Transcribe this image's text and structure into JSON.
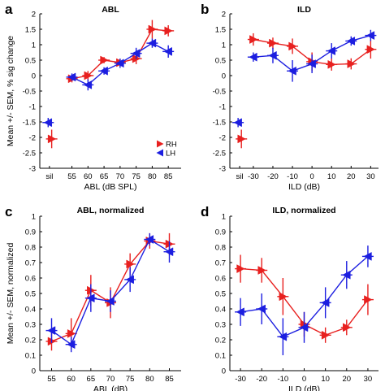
{
  "colors": {
    "RH": "#e8201f",
    "LH": "#1c1ee0",
    "axis": "#000000"
  },
  "chart_data": [
    {
      "panel": "a",
      "type": "line",
      "title": "ABL",
      "xlabel": "ABL (dB SPL)",
      "ylabel": "Mean +/- SEM, % sig change",
      "ylim": [
        -3,
        2
      ],
      "xlim": [
        45,
        89
      ],
      "yticks": [
        "-3",
        "-2.5",
        "-2",
        "-1.5",
        "-1",
        "-0.5",
        "0",
        "0.5",
        "1",
        "1.5",
        "2"
      ],
      "xticks": [
        {
          "x": 48,
          "label": "sil"
        },
        {
          "x": 55,
          "label": "55"
        },
        {
          "x": 60,
          "label": "60"
        },
        {
          "x": 65,
          "label": "65"
        },
        {
          "x": 70,
          "label": "70"
        },
        {
          "x": 75,
          "label": "75"
        },
        {
          "x": 80,
          "label": "80"
        },
        {
          "x": 85,
          "label": "85"
        }
      ],
      "legend": {
        "placement": "lower-right",
        "entries": [
          "RH",
          "LH"
        ]
      },
      "series": [
        {
          "name": "RH",
          "marker": "right-triangle",
          "x": [
            55,
            60,
            65,
            70,
            75,
            80,
            85
          ],
          "y": [
            -0.1,
            0.0,
            0.5,
            0.42,
            0.55,
            1.5,
            1.45
          ],
          "err": [
            0.12,
            0.15,
            0.1,
            0.12,
            0.18,
            0.3,
            0.18
          ],
          "sil": {
            "x": 48.7,
            "y": -2.05,
            "err": 0.3
          }
        },
        {
          "name": "LH",
          "marker": "left-triangle",
          "x": [
            55,
            60,
            65,
            70,
            75,
            80,
            85
          ],
          "y": [
            -0.05,
            -0.3,
            0.15,
            0.4,
            0.72,
            1.05,
            0.78
          ],
          "err": [
            0.12,
            0.18,
            0.12,
            0.15,
            0.18,
            0.15,
            0.2
          ],
          "sil": {
            "x": 47.6,
            "y": -1.52,
            "err": 0.15
          }
        }
      ]
    },
    {
      "panel": "b",
      "type": "line",
      "title": "ILD",
      "xlabel": "ILD (dB)",
      "ylabel": "",
      "ylim": [
        -3,
        2
      ],
      "xlim": [
        -42,
        34
      ],
      "yticks": [
        "-3",
        "-2.5",
        "-2",
        "-1.5",
        "-1",
        "-0.5",
        "0",
        "0.5",
        "1",
        "1.5",
        "2"
      ],
      "xticks": [
        {
          "x": -37,
          "label": "sil"
        },
        {
          "x": -30,
          "label": "-30"
        },
        {
          "x": -20,
          "label": "-20"
        },
        {
          "x": -10,
          "label": "-10"
        },
        {
          "x": 0,
          "label": "0"
        },
        {
          "x": 10,
          "label": "10"
        },
        {
          "x": 20,
          "label": "20"
        },
        {
          "x": 30,
          "label": "30"
        }
      ],
      "series": [
        {
          "name": "RH",
          "marker": "right-triangle",
          "x": [
            -30,
            -20,
            -10,
            0,
            10,
            20,
            30
          ],
          "y": [
            1.17,
            1.05,
            0.95,
            0.45,
            0.36,
            0.38,
            0.85
          ],
          "err": [
            0.2,
            0.18,
            0.25,
            0.3,
            0.2,
            0.18,
            0.3
          ],
          "sil": {
            "x": -36.1,
            "y": -2.05,
            "err": 0.3
          }
        },
        {
          "name": "LH",
          "marker": "left-triangle",
          "x": [
            -30,
            -20,
            -10,
            0,
            10,
            20,
            30
          ],
          "y": [
            0.6,
            0.65,
            0.15,
            0.38,
            0.8,
            1.12,
            1.3
          ],
          "err": [
            0.15,
            0.25,
            0.35,
            0.3,
            0.25,
            0.15,
            0.18
          ],
          "sil": {
            "x": -37.8,
            "y": -1.52,
            "err": 0.15
          }
        }
      ]
    },
    {
      "panel": "c",
      "type": "line",
      "title": "ABL, normalized",
      "xlabel": "ABL (dB)",
      "ylabel": "Mean +/- SEM, normalized",
      "ylim": [
        0,
        1
      ],
      "xlim": [
        52,
        88
      ],
      "yticks": [
        "0",
        "0.1",
        "0.2",
        "0.3",
        "0.4",
        "0.5",
        "0.6",
        "0.7",
        "0.8",
        "0.9",
        "1"
      ],
      "xticks": [
        {
          "x": 55,
          "label": "55"
        },
        {
          "x": 60,
          "label": "60"
        },
        {
          "x": 65,
          "label": "65"
        },
        {
          "x": 70,
          "label": "70"
        },
        {
          "x": 75,
          "label": "75"
        },
        {
          "x": 80,
          "label": "80"
        },
        {
          "x": 85,
          "label": "85"
        }
      ],
      "series": [
        {
          "name": "RH",
          "marker": "right-triangle",
          "x": [
            55,
            60,
            65,
            70,
            75,
            80,
            85
          ],
          "y": [
            0.19,
            0.24,
            0.52,
            0.44,
            0.69,
            0.84,
            0.82
          ],
          "err": [
            0.06,
            0.1,
            0.1,
            0.1,
            0.07,
            0.05,
            0.07
          ],
          "sil": null
        },
        {
          "name": "LH",
          "marker": "left-triangle",
          "x": [
            55,
            60,
            65,
            70,
            75,
            80,
            85
          ],
          "y": [
            0.26,
            0.17,
            0.47,
            0.45,
            0.59,
            0.85,
            0.77
          ],
          "err": [
            0.08,
            0.05,
            0.09,
            0.07,
            0.08,
            0.04,
            0.07
          ],
          "sil": null
        }
      ]
    },
    {
      "panel": "d",
      "type": "line",
      "title": "ILD, normalized",
      "xlabel": "ILD (dB)",
      "ylabel": "",
      "ylim": [
        0,
        1
      ],
      "xlim": [
        -35,
        35
      ],
      "yticks": [
        "0",
        "0.1",
        "0.2",
        "0.3",
        "0.4",
        "0.5",
        "0.6",
        "0.7",
        "0.8",
        "0.9",
        "1"
      ],
      "xticks": [
        {
          "x": -30,
          "label": "-30"
        },
        {
          "x": -20,
          "label": "-20"
        },
        {
          "x": -10,
          "label": "-10"
        },
        {
          "x": 0,
          "label": "0"
        },
        {
          "x": 10,
          "label": "10"
        },
        {
          "x": 20,
          "label": "20"
        },
        {
          "x": 30,
          "label": "30"
        }
      ],
      "series": [
        {
          "name": "RH",
          "marker": "right-triangle",
          "x": [
            -30,
            -20,
            -10,
            0,
            10,
            20,
            30
          ],
          "y": [
            0.66,
            0.65,
            0.48,
            0.3,
            0.23,
            0.28,
            0.46
          ],
          "err": [
            0.09,
            0.08,
            0.12,
            0.08,
            0.05,
            0.05,
            0.1
          ],
          "sil": null
        },
        {
          "name": "LH",
          "marker": "left-triangle",
          "x": [
            -30,
            -20,
            -10,
            0,
            10,
            20,
            30
          ],
          "y": [
            0.38,
            0.4,
            0.22,
            0.28,
            0.44,
            0.62,
            0.74
          ],
          "err": [
            0.09,
            0.1,
            0.12,
            0.1,
            0.1,
            0.09,
            0.07
          ],
          "sil": null
        }
      ]
    }
  ]
}
